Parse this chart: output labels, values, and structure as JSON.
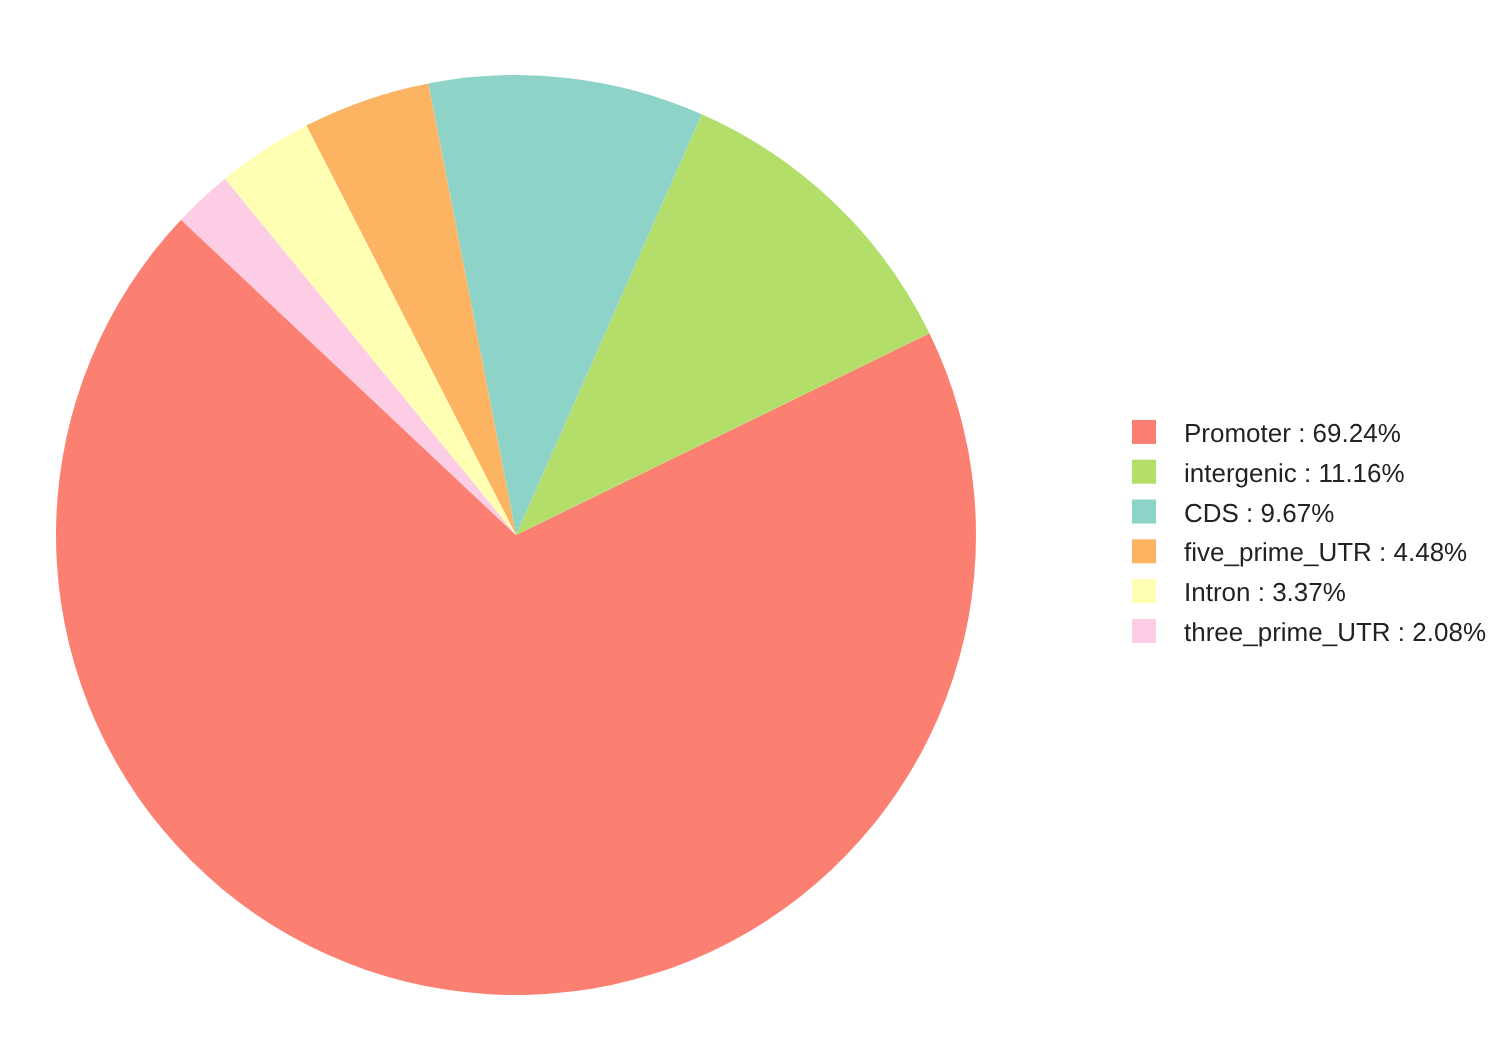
{
  "chart_data": {
    "type": "pie",
    "categories": [
      "Promoter : 69.24%",
      "intergenic : 11.16%",
      "CDS : 9.67%",
      "five_prime_UTR : 4.48%",
      "Intron : 3.37%",
      "three_prime_UTR : 2.08%"
    ],
    "values": [
      69.24,
      11.16,
      9.67,
      4.48,
      3.37,
      2.08
    ],
    "colors": [
      "#fb8072",
      "#b3de69",
      "#8dd3c7",
      "#fdb462",
      "#ffffb3",
      "#fccde5"
    ],
    "legend": "right"
  }
}
